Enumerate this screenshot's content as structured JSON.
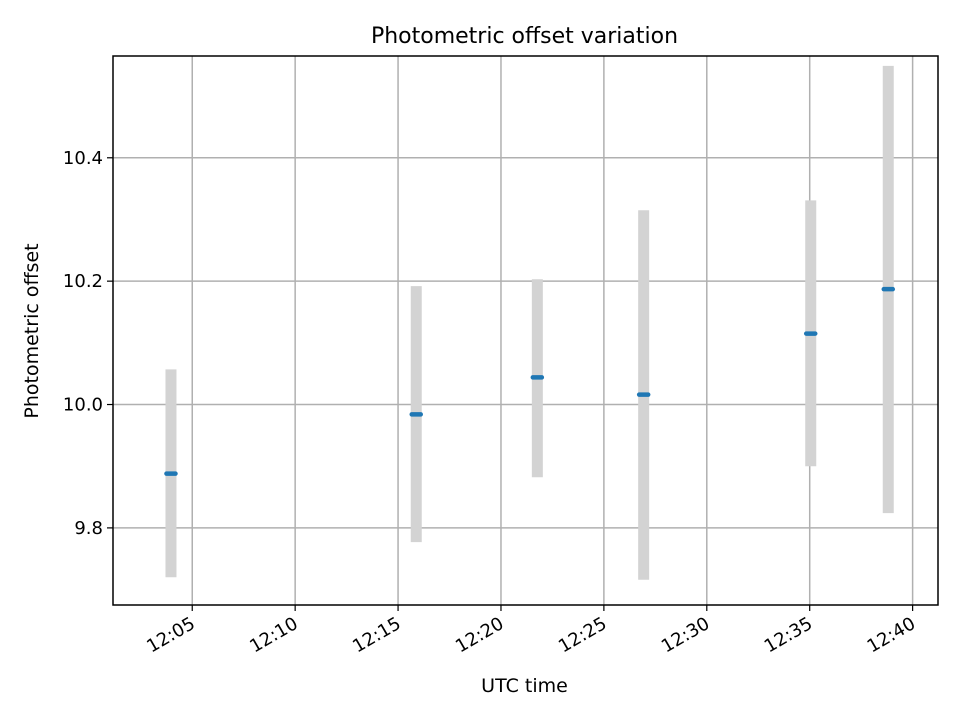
{
  "chart_data": {
    "type": "scatter",
    "title": "Photometric offset variation",
    "xlabel": "UTC time",
    "ylabel": "Photometric offset",
    "x_axis_type": "time",
    "xlim": [
      "12:01:09",
      "12:41:14"
    ],
    "ylim": [
      9.675,
      10.565
    ],
    "x_ticks": [
      "12:05",
      "12:10",
      "12:15",
      "12:20",
      "12:25",
      "12:30",
      "12:35",
      "12:40"
    ],
    "y_ticks": [
      9.8,
      10.0,
      10.2,
      10.4
    ],
    "y_tick_labels": [
      "9.8",
      "10.0",
      "10.2",
      "10.4"
    ],
    "grid": true,
    "series": [
      {
        "x": [
          "12:03:58",
          "12:15:53",
          "12:21:46",
          "12:26:56",
          "12:35:03",
          "12:38:49"
        ],
        "y": [
          9.888,
          9.984,
          10.044,
          10.016,
          10.115,
          10.187
        ],
        "yerr_low": [
          9.72,
          9.777,
          9.882,
          9.716,
          9.9,
          9.824
        ],
        "yerr_high": [
          10.057,
          10.192,
          10.203,
          10.315,
          10.331,
          10.549
        ]
      }
    ],
    "colors": {
      "marker": "#1f77b4",
      "errorbar": "#d3d3d3"
    }
  }
}
